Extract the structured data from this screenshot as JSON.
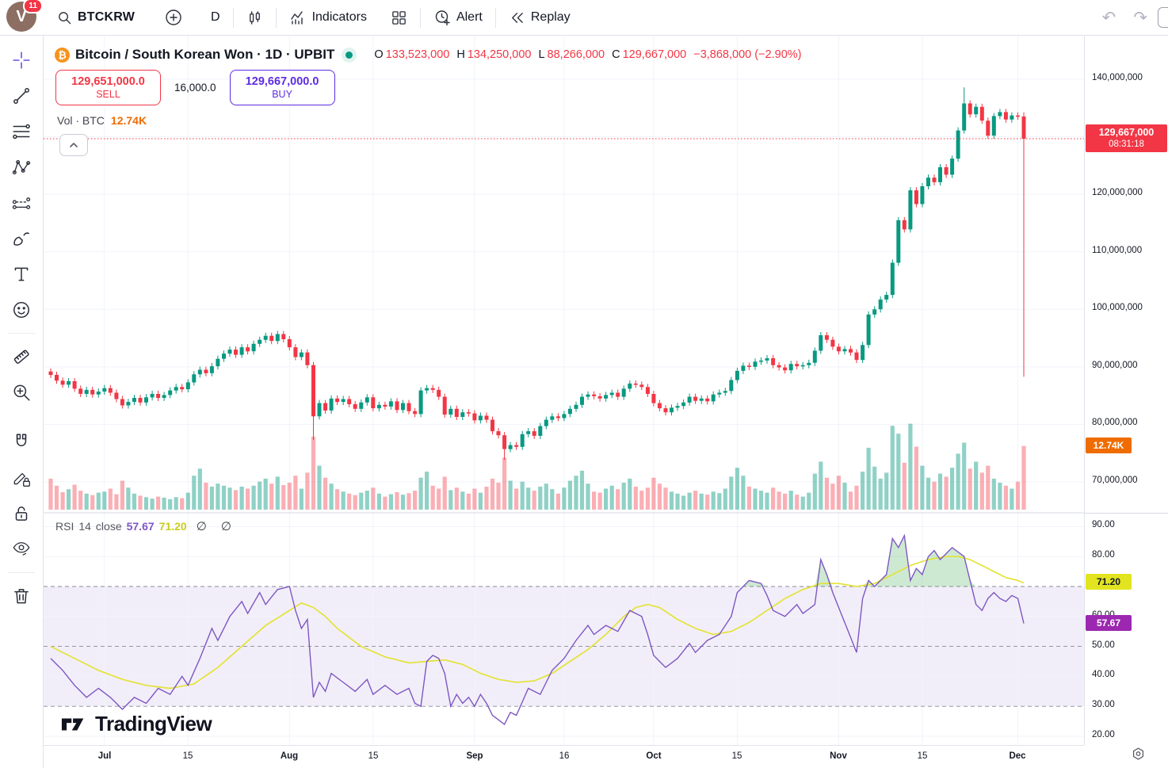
{
  "topbar": {
    "avatar_initial": "V",
    "avatar_badge": "11",
    "symbol": "BTCKRW",
    "interval": "D",
    "indicators": "Indicators",
    "alert": "Alert",
    "replay": "Replay"
  },
  "symbol_header": {
    "title": "Bitcoin / South Korean Won · 1D · UPBIT",
    "status_color": "#089981",
    "ohlc": {
      "o_label": "O",
      "o": "133,523,000",
      "h_label": "H",
      "h": "134,250,000",
      "l_label": "L",
      "l": "88,266,000",
      "c_label": "C",
      "c": "129,667,000",
      "change": "−3,868,000 (−2.90%)"
    }
  },
  "order_panel": {
    "sell_price": "129,651,000.0",
    "sell_label": "SELL",
    "sell_color": "#f23645",
    "spread": "16,000.0",
    "buy_price": "129,667,000.0",
    "buy_label": "BUY",
    "buy_color": "#5d2ce2"
  },
  "volume_row": {
    "label": "Vol · BTC",
    "value": "12.74K",
    "value_color": "#ef6c00"
  },
  "rsi_legend": {
    "title": "RSI",
    "length": "14",
    "source": "close",
    "value": "57.67",
    "value_color": "#7e57c2",
    "ma_value": "71.20",
    "ma_color": "#c9cc20",
    "hidden": "∅ ∅"
  },
  "watermark": "TradingView",
  "price_axis": {
    "labels": [
      {
        "text": "140,000,000",
        "value": 140
      },
      {
        "text": "130,000,000",
        "value": 130
      },
      {
        "text": "120,000,000",
        "value": 120
      },
      {
        "text": "110,000,000",
        "value": 110
      },
      {
        "text": "100,000,000",
        "value": 100
      },
      {
        "text": "90,000,000",
        "value": 90
      },
      {
        "text": "80,000,000",
        "value": 80
      },
      {
        "text": "70,000,000",
        "value": 70
      }
    ],
    "last_price_label": {
      "price": "129,667,000",
      "countdown": "08:31:18",
      "bg": "#f23645"
    },
    "volume_label": {
      "text": "12.74K",
      "bg": "#ef6c00"
    }
  },
  "rsi_axis": {
    "labels": [
      {
        "text": "90.00",
        "value": 90
      },
      {
        "text": "80.00",
        "value": 80
      },
      {
        "text": "60.00",
        "value": 60
      },
      {
        "text": "50.00",
        "value": 50
      },
      {
        "text": "40.00",
        "value": 40
      },
      {
        "text": "30.00",
        "value": 30
      },
      {
        "text": "20.00",
        "value": 20
      }
    ],
    "ma_label": {
      "text": "71.20",
      "value": 71.2,
      "bg": "#e2e41f",
      "fg": "#131722"
    },
    "value_label": {
      "text": "57.67",
      "value": 57.67,
      "bg": "#9c27b0",
      "fg": "#ffffff"
    }
  },
  "time_axis": {
    "ticks": [
      {
        "label": "Jul",
        "idx": 9,
        "major": true
      },
      {
        "label": "15",
        "idx": 23,
        "major": false
      },
      {
        "label": "Aug",
        "idx": 40,
        "major": true
      },
      {
        "label": "15",
        "idx": 54,
        "major": false
      },
      {
        "label": "Sep",
        "idx": 71,
        "major": true
      },
      {
        "label": "16",
        "idx": 86,
        "major": false
      },
      {
        "label": "Oct",
        "idx": 101,
        "major": true
      },
      {
        "label": "15",
        "idx": 115,
        "major": false
      },
      {
        "label": "Nov",
        "idx": 132,
        "major": true
      },
      {
        "label": "15",
        "idx": 146,
        "major": false
      },
      {
        "label": "Dec",
        "idx": 162,
        "major": true
      }
    ]
  },
  "chart_data": {
    "type": "candlestick",
    "symbol": "BTCKRW",
    "exchange": "UPBIT",
    "interval": "1D",
    "price_unit": "million KRW",
    "ohlc_today": {
      "o": 133.523,
      "h": 134.25,
      "l": 88.266,
      "c": 129.667
    },
    "first_open": 89.2,
    "wick": 0.55,
    "closes": [
      88.6,
      87.6,
      86.9,
      87.5,
      86.2,
      85.3,
      86.0,
      85.2,
      85.7,
      86.3,
      85.5,
      84.4,
      83.3,
      83.9,
      84.6,
      83.8,
      84.7,
      85.3,
      84.6,
      85.1,
      85.9,
      86.5,
      86.1,
      87.3,
      88.7,
      89.5,
      88.9,
      90.1,
      91.4,
      92.3,
      93.0,
      92.1,
      93.4,
      92.7,
      94.0,
      94.7,
      95.4,
      94.5,
      95.7,
      94.8,
      93.4,
      91.7,
      92.5,
      90.3,
      81.4,
      83.7,
      82.4,
      84.5,
      83.9,
      84.4,
      83.5,
      82.7,
      83.8,
      84.7,
      82.8,
      83.4,
      83.1,
      84.0,
      82.5,
      83.7,
      82.3,
      81.8,
      85.9,
      86.3,
      86.0,
      84.8,
      81.7,
      82.7,
      81.3,
      82.1,
      81.9,
      80.7,
      81.5,
      80.8,
      78.8,
      78.1,
      75.7,
      76.4,
      76.1,
      78.3,
      78.8,
      78.0,
      79.7,
      80.8,
      81.4,
      81.1,
      81.8,
      82.7,
      83.4,
      84.8,
      85.2,
      84.9,
      84.5,
      85.1,
      85.5,
      84.8,
      86.2,
      87.1,
      86.9,
      86.5,
      85.3,
      83.7,
      82.8,
      82.1,
      82.9,
      83.2,
      83.8,
      84.8,
      84.1,
      84.5,
      84.0,
      85.2,
      85.5,
      85.8,
      87.7,
      89.3,
      90.2,
      90.0,
      90.9,
      91.1,
      91.5,
      90.3,
      89.9,
      89.4,
      90.5,
      90.1,
      90.3,
      90.7,
      92.8,
      95.5,
      94.7,
      93.5,
      92.7,
      93.1,
      92.5,
      91.2,
      93.8,
      99.1,
      100.0,
      101.7,
      102.5,
      108.1,
      115.5,
      113.9,
      120.7,
      118.3,
      121.4,
      122.9,
      122.1,
      124.7,
      123.4,
      126.2,
      131.1,
      135.8,
      133.9,
      135.2,
      132.8,
      130.2,
      133.6,
      134.3,
      133.0,
      133.7,
      133.5,
      129.667
    ],
    "volumes_kbtc": [
      6.2,
      4.8,
      3.5,
      4.1,
      5.0,
      3.8,
      3.2,
      2.9,
      3.4,
      3.6,
      4.2,
      3.1,
      5.8,
      4.4,
      3.2,
      2.8,
      2.5,
      2.2,
      2.6,
      2.4,
      2.1,
      2.5,
      2.3,
      3.4,
      6.8,
      8.2,
      5.4,
      4.6,
      5.2,
      4.8,
      4.4,
      3.9,
      4.6,
      4.2,
      4.8,
      5.6,
      6.2,
      5.2,
      6.6,
      4.9,
      5.4,
      6.8,
      4.2,
      7.4,
      14.6,
      8.8,
      6.4,
      5.2,
      4.1,
      3.6,
      3.2,
      2.9,
      3.4,
      3.8,
      4.4,
      3.2,
      2.6,
      3.1,
      3.5,
      3.0,
      3.3,
      3.8,
      6.4,
      7.6,
      4.8,
      4.2,
      6.6,
      3.9,
      4.4,
      3.6,
      3.2,
      4.2,
      3.4,
      4.6,
      6.2,
      5.4,
      10.4,
      5.8,
      4.2,
      5.6,
      4.4,
      3.8,
      4.6,
      5.2,
      4.1,
      3.2,
      4.4,
      5.8,
      6.8,
      7.8,
      5.2,
      3.6,
      3.4,
      4.2,
      4.8,
      4.1,
      5.4,
      6.2,
      4.6,
      3.8,
      4.4,
      6.4,
      5.2,
      4.4,
      3.6,
      3.2,
      2.8,
      3.4,
      3.8,
      3.2,
      3.0,
      3.6,
      3.3,
      4.2,
      6.6,
      8.4,
      6.8,
      4.6,
      4.2,
      3.8,
      3.4,
      4.4,
      3.6,
      3.2,
      3.8,
      3.0,
      2.6,
      3.4,
      7.2,
      9.6,
      6.4,
      5.2,
      6.8,
      5.4,
      3.6,
      4.8,
      7.6,
      12.4,
      8.6,
      6.2,
      7.4,
      16.8,
      15.2,
      9.4,
      17.2,
      12.6,
      8.8,
      6.4,
      5.6,
      7.2,
      6.6,
      8.4,
      11.2,
      13.4,
      8.2,
      9.6,
      7.4,
      8.8,
      6.2,
      5.4,
      4.8,
      4.2,
      5.6,
      12.74
    ],
    "special_candles": {
      "44": {
        "l": 77.3
      },
      "76": {
        "l": 73.8
      },
      "153": {
        "h": 138.6
      },
      "163": {
        "o": 133.523,
        "h": 134.25,
        "l": 88.266,
        "c": 129.667
      }
    },
    "last_close_line": 129.667,
    "price_gridlines": [
      140,
      130,
      120,
      110,
      100,
      90,
      80,
      70
    ],
    "colors": {
      "up": "#089981",
      "down": "#f23645",
      "vol_up": "rgba(8,153,129,0.45)",
      "vol_down": "rgba(242,54,69,0.4)"
    },
    "rsi": {
      "length": 14,
      "source": "close",
      "current": 57.67,
      "ma_current": 71.2,
      "band": [
        30,
        70
      ],
      "mid": 50,
      "gridlines": [
        90,
        80,
        60,
        40,
        20
      ],
      "dashed": [
        70,
        50,
        30
      ],
      "line_color": "#7e57c2",
      "ma_color": "#e3e337",
      "band_color": "rgba(126,87,194,0.10)",
      "fill_above_color": "rgba(60,166,75,0.25)",
      "points": [
        [
          0,
          46
        ],
        [
          2,
          42
        ],
        [
          4,
          37
        ],
        [
          6,
          33
        ],
        [
          8,
          36
        ],
        [
          10,
          33
        ],
        [
          12,
          29
        ],
        [
          14,
          33
        ],
        [
          16,
          31
        ],
        [
          18,
          36
        ],
        [
          20,
          34
        ],
        [
          22,
          40
        ],
        [
          23,
          37
        ],
        [
          25,
          46
        ],
        [
          27,
          56
        ],
        [
          28,
          52
        ],
        [
          30,
          60
        ],
        [
          32,
          65
        ],
        [
          33,
          61
        ],
        [
          35,
          68
        ],
        [
          36,
          64
        ],
        [
          38,
          69
        ],
        [
          40,
          70
        ],
        [
          41,
          62
        ],
        [
          42,
          56
        ],
        [
          43,
          59
        ],
        [
          44,
          33
        ],
        [
          45,
          38
        ],
        [
          46,
          35
        ],
        [
          47,
          41
        ],
        [
          49,
          38
        ],
        [
          51,
          35
        ],
        [
          53,
          39
        ],
        [
          54,
          34
        ],
        [
          56,
          37
        ],
        [
          58,
          34
        ],
        [
          60,
          36
        ],
        [
          61,
          31
        ],
        [
          62,
          30
        ],
        [
          63,
          45
        ],
        [
          64,
          47
        ],
        [
          65,
          46
        ],
        [
          66,
          41
        ],
        [
          67,
          30
        ],
        [
          68,
          34
        ],
        [
          69,
          31
        ],
        [
          70,
          33
        ],
        [
          71,
          30
        ],
        [
          72,
          34
        ],
        [
          73,
          31
        ],
        [
          74,
          27
        ],
        [
          76,
          24
        ],
        [
          77,
          28
        ],
        [
          78,
          27
        ],
        [
          80,
          36
        ],
        [
          82,
          34
        ],
        [
          84,
          42
        ],
        [
          86,
          46
        ],
        [
          88,
          52
        ],
        [
          90,
          57
        ],
        [
          91,
          54
        ],
        [
          93,
          57
        ],
        [
          95,
          55
        ],
        [
          97,
          62
        ],
        [
          99,
          60
        ],
        [
          100,
          54
        ],
        [
          101,
          47
        ],
        [
          103,
          43
        ],
        [
          105,
          46
        ],
        [
          107,
          51
        ],
        [
          108,
          48
        ],
        [
          110,
          52
        ],
        [
          112,
          54
        ],
        [
          114,
          60
        ],
        [
          115,
          68
        ],
        [
          117,
          72
        ],
        [
          119,
          71
        ],
        [
          120,
          67
        ],
        [
          121,
          62
        ],
        [
          123,
          60
        ],
        [
          125,
          64
        ],
        [
          126,
          61
        ],
        [
          128,
          64
        ],
        [
          129,
          79
        ],
        [
          130,
          74
        ],
        [
          131,
          68
        ],
        [
          133,
          58
        ],
        [
          135,
          48
        ],
        [
          136,
          66
        ],
        [
          137,
          72
        ],
        [
          138,
          70
        ],
        [
          140,
          74
        ],
        [
          141,
          86
        ],
        [
          142,
          83
        ],
        [
          143,
          87
        ],
        [
          144,
          72
        ],
        [
          145,
          76
        ],
        [
          146,
          74
        ],
        [
          147,
          80
        ],
        [
          148,
          82
        ],
        [
          149,
          79
        ],
        [
          150,
          81
        ],
        [
          151,
          83
        ],
        [
          153,
          80
        ],
        [
          154,
          72
        ],
        [
          155,
          64
        ],
        [
          156,
          62
        ],
        [
          157,
          66
        ],
        [
          158,
          68
        ],
        [
          159,
          66
        ],
        [
          160,
          65
        ],
        [
          161,
          67
        ],
        [
          162,
          66
        ],
        [
          163,
          57.67
        ]
      ],
      "ma_points": [
        [
          0,
          50
        ],
        [
          4,
          46
        ],
        [
          8,
          42
        ],
        [
          12,
          39
        ],
        [
          16,
          37
        ],
        [
          20,
          36
        ],
        [
          24,
          37.5
        ],
        [
          28,
          43
        ],
        [
          32,
          50
        ],
        [
          36,
          57
        ],
        [
          40,
          62
        ],
        [
          42,
          64.5
        ],
        [
          44,
          63
        ],
        [
          46,
          60
        ],
        [
          48,
          56
        ],
        [
          52,
          50
        ],
        [
          56,
          46.5
        ],
        [
          60,
          44.5
        ],
        [
          63,
          45
        ],
        [
          66,
          45.5
        ],
        [
          69,
          44
        ],
        [
          72,
          41
        ],
        [
          75,
          39
        ],
        [
          78,
          38
        ],
        [
          81,
          38.5
        ],
        [
          84,
          41
        ],
        [
          87,
          45
        ],
        [
          90,
          49
        ],
        [
          93,
          54
        ],
        [
          96,
          60
        ],
        [
          98,
          63
        ],
        [
          100,
          64
        ],
        [
          102,
          63
        ],
        [
          105,
          59
        ],
        [
          108,
          56
        ],
        [
          111,
          54
        ],
        [
          114,
          55
        ],
        [
          117,
          58
        ],
        [
          120,
          62
        ],
        [
          123,
          66
        ],
        [
          126,
          69
        ],
        [
          129,
          71
        ],
        [
          132,
          71
        ],
        [
          135,
          70
        ],
        [
          138,
          71
        ],
        [
          141,
          74
        ],
        [
          144,
          77
        ],
        [
          147,
          79
        ],
        [
          150,
          80
        ],
        [
          152,
          80
        ],
        [
          154,
          79
        ],
        [
          156,
          77
        ],
        [
          158,
          75
        ],
        [
          160,
          73
        ],
        [
          162,
          72
        ],
        [
          163,
          71.2
        ]
      ]
    }
  }
}
